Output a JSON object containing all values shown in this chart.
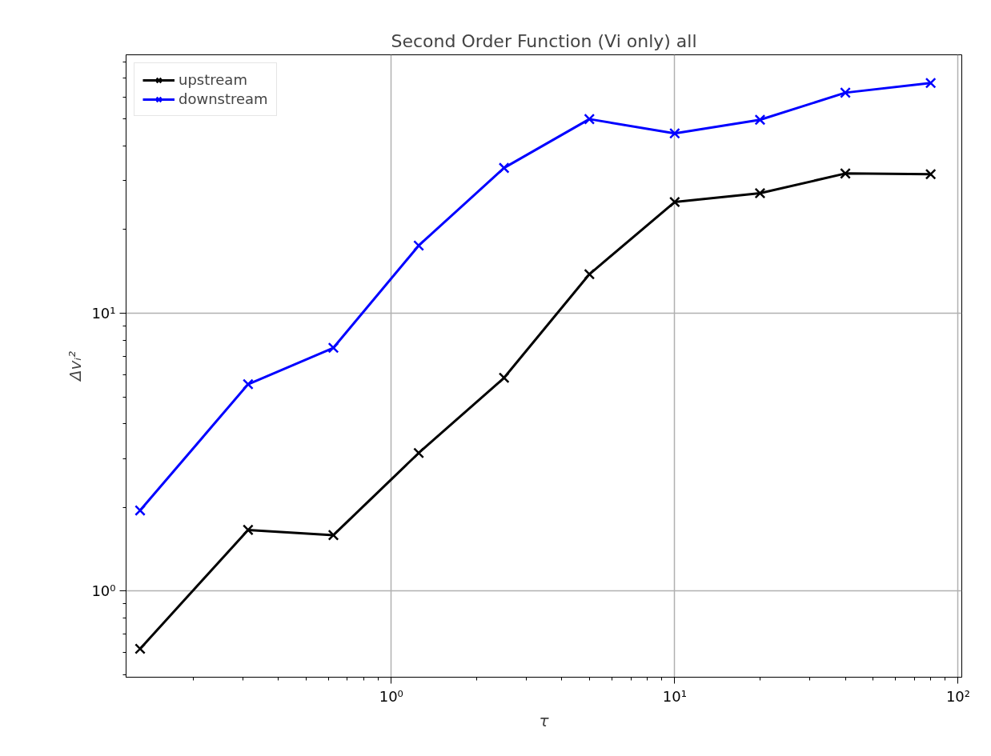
{
  "chart_data": {
    "type": "line",
    "title": "Second Order Function (Vi only) all",
    "xlabel": "τ",
    "ylabel": "Δvᵢ²",
    "log": "xy",
    "grid": true,
    "legend": "top left",
    "marker": "cross",
    "line_style": "solid",
    "x": [
      0.13,
      0.3125,
      0.625,
      1.25,
      2.5,
      5,
      10,
      20,
      40,
      80
    ],
    "xlim": [
      0.116,
      103
    ],
    "ylim": [
      0.49,
      85
    ],
    "xticks": [
      {
        "value": 1,
        "label": "10⁰"
      },
      {
        "value": 10,
        "label": "10¹"
      },
      {
        "value": 100,
        "label": "10²"
      }
    ],
    "yticks": [
      {
        "value": 1,
        "label": "10⁰"
      },
      {
        "value": 10,
        "label": "10¹"
      }
    ],
    "series": [
      {
        "name": "upstream",
        "color": "#000000",
        "values": [
          0.62,
          1.66,
          1.59,
          3.14,
          5.85,
          13.8,
          25.1,
          27.0,
          31.8,
          31.6
        ]
      },
      {
        "name": "downstream",
        "color": "#0000ff",
        "values": [
          1.95,
          5.55,
          7.5,
          17.5,
          33.3,
          49.9,
          44.3,
          49.6,
          62.1,
          67.3
        ]
      }
    ]
  }
}
